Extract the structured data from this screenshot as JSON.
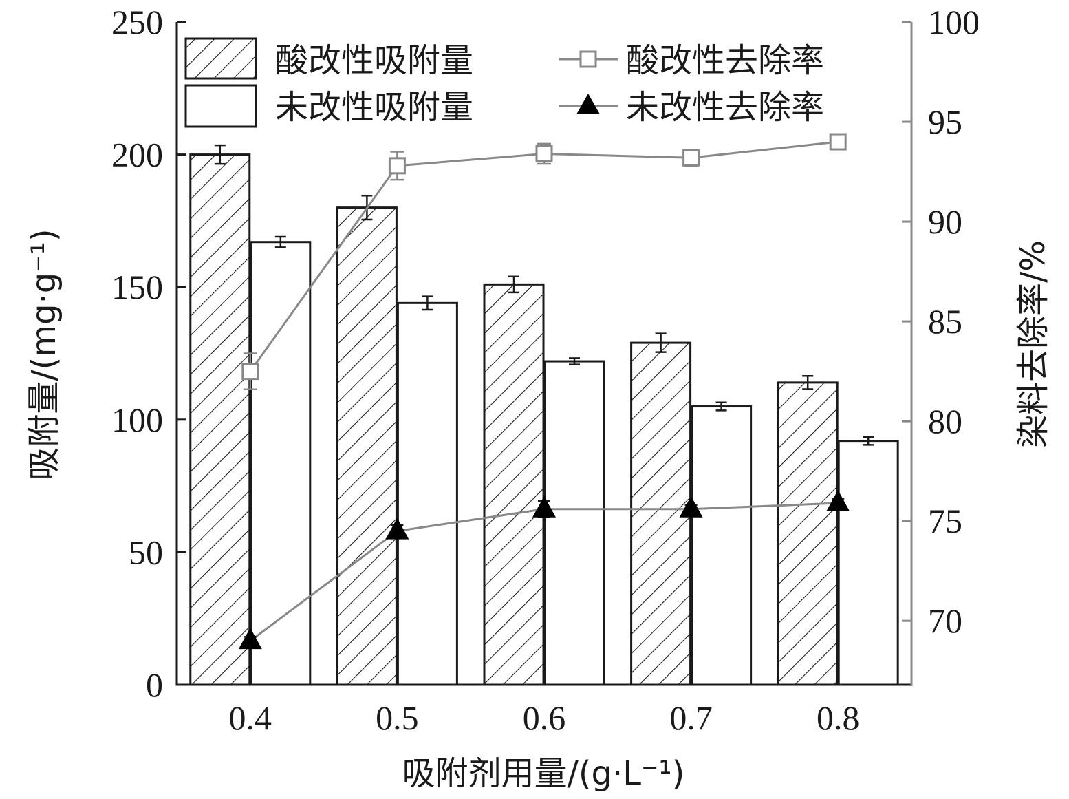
{
  "chart_data": {
    "type": "bar",
    "categories": [
      "0.4",
      "0.5",
      "0.6",
      "0.7",
      "0.8"
    ],
    "xlabel": "吸附剂用量/(g·L⁻¹)",
    "ylabel": "吸附量/(mg·g⁻¹)",
    "y2label": "染料去除率/%",
    "ylim": [
      0,
      250
    ],
    "y2lim": [
      66.8,
      100
    ],
    "yticks": [
      "0",
      "50",
      "100",
      "150",
      "200",
      "250"
    ],
    "y2ticks": [
      "70",
      "75",
      "80",
      "85",
      "90",
      "95",
      "100"
    ],
    "series": [
      {
        "name": "酸改性吸附量",
        "kind": "bar",
        "axis": "left",
        "pattern": "hatch",
        "values": [
          200,
          180,
          151,
          129,
          114
        ],
        "errors": [
          3.5,
          4.5,
          3.0,
          3.5,
          2.5
        ]
      },
      {
        "name": "未改性吸附量",
        "kind": "bar",
        "axis": "right-none",
        "pattern": "none",
        "values": [
          167,
          144,
          122,
          105,
          92
        ],
        "errors": [
          2.0,
          2.5,
          1.2,
          1.5,
          1.5
        ]
      },
      {
        "name": "酸改性去除率",
        "kind": "line",
        "axis": "right",
        "marker": "open-square",
        "values": [
          82.5,
          92.8,
          93.4,
          93.2,
          94.0
        ],
        "errors": [
          0.9,
          0.7,
          0.5,
          0.4,
          0.35
        ]
      },
      {
        "name": "未改性去除率",
        "kind": "line",
        "axis": "right",
        "marker": "filled-triangle",
        "values": [
          69.0,
          74.5,
          75.6,
          75.6,
          75.9
        ],
        "errors": [
          0.2,
          0.3,
          0.4,
          0.2,
          0.2
        ]
      }
    ],
    "legend_position": "top-left",
    "colors": {
      "axis": "#1a1a1a",
      "right_axis": "#888888",
      "line": "#888888",
      "bar_edge": "#1a1a1a"
    }
  }
}
